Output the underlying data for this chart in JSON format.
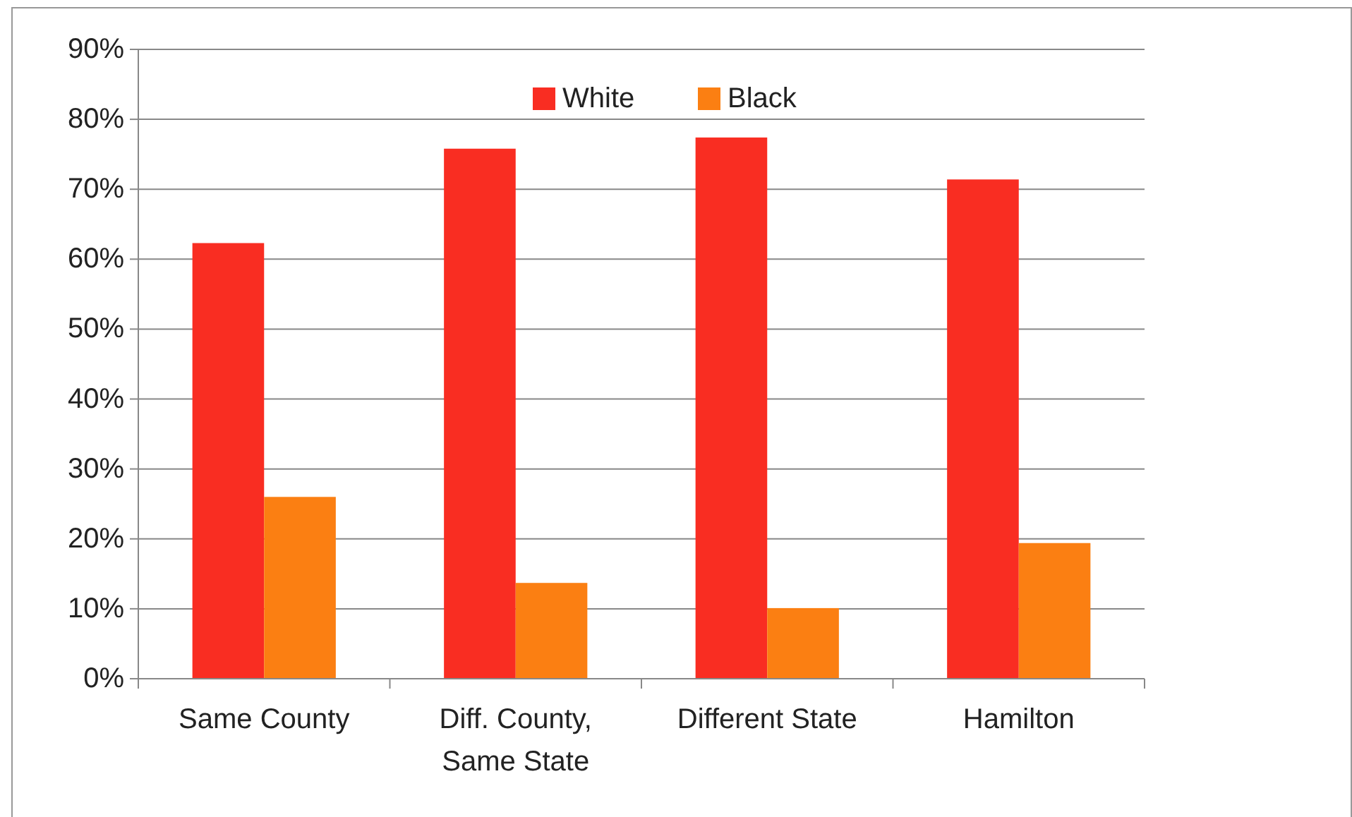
{
  "chart_data": {
    "type": "bar",
    "categories": [
      "Same County",
      "Diff. County, Same State",
      "Different State",
      "Hamilton"
    ],
    "series": [
      {
        "name": "White",
        "color": "#f92d22",
        "values": [
          62.3,
          75.8,
          77.4,
          71.4
        ]
      },
      {
        "name": "Black",
        "color": "#fb7f12",
        "values": [
          26.0,
          13.7,
          10.1,
          19.4
        ]
      }
    ],
    "ylim": [
      0,
      90
    ],
    "yticks": [
      {
        "value": 0,
        "label": "0%"
      },
      {
        "value": 10,
        "label": "10%"
      },
      {
        "value": 20,
        "label": "20%"
      },
      {
        "value": 30,
        "label": "30%"
      },
      {
        "value": 40,
        "label": "40%"
      },
      {
        "value": 50,
        "label": "50%"
      },
      {
        "value": 60,
        "label": "60%"
      },
      {
        "value": 70,
        "label": "70%"
      },
      {
        "value": 80,
        "label": "80%"
      },
      {
        "value": 90,
        "label": "90%"
      }
    ],
    "grid": "y",
    "legend": "top"
  }
}
